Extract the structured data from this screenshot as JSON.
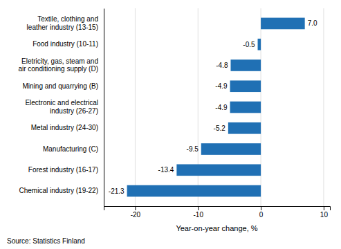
{
  "chart_data": {
    "type": "bar",
    "orientation": "horizontal",
    "categories": [
      "Chemical industry (19-22)",
      "Forest industry (16-17)",
      "Manufacturing (C)",
      "Metal industry (24-30)",
      "Electronic and electrical\nindustry (26-27)",
      "Mining and quarrying (B)",
      "Eletricity, gas, steam and\nair conditioning supply (D)",
      "Food industry (10-11)",
      "Textile, clothing and\nleather industry (13-15)"
    ],
    "values": [
      -21.3,
      -13.4,
      -9.5,
      -5.2,
      -4.9,
      -4.9,
      -4.8,
      -0.5,
      7.0
    ],
    "value_labels": [
      "-21.3",
      "-13.4",
      "-9.5",
      "-5.2",
      "-4.9",
      "-4.9",
      "-4.8",
      "-0.5",
      "7.0"
    ],
    "data_labels": true,
    "color": "#2070b4",
    "xlabel": "Year-on-year change, %",
    "xlim": [
      -25,
      11
    ],
    "xticks": [
      -20,
      -10,
      0,
      10
    ],
    "grid": true,
    "annotations": [
      "Source: Statistics Finland"
    ]
  }
}
